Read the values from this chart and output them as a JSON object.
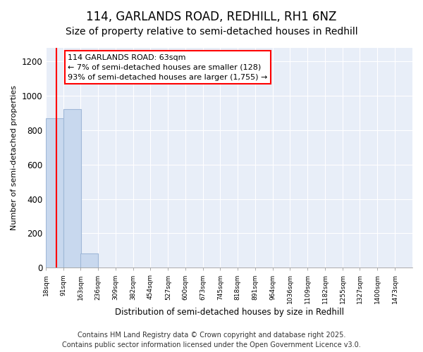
{
  "title": "114, GARLANDS ROAD, REDHILL, RH1 6NZ",
  "subtitle": "Size of property relative to semi-detached houses in Redhill",
  "xlabel": "Distribution of semi-detached houses by size in Redhill",
  "ylabel": "Number of semi-detached properties",
  "bin_edges": [
    18,
    91,
    163,
    236,
    309,
    382,
    454,
    527,
    600,
    673,
    745,
    818,
    891,
    964,
    1036,
    1109,
    1182,
    1255,
    1327,
    1400,
    1473
  ],
  "bar_heights": [
    870,
    920,
    85,
    0,
    0,
    0,
    0,
    0,
    0,
    0,
    0,
    0,
    0,
    0,
    0,
    0,
    0,
    0,
    0,
    0
  ],
  "bar_color": "#c8d8ee",
  "bar_edge_color": "#a0b8d8",
  "red_line_x": 63,
  "annotation_title": "114 GARLANDS ROAD: 63sqm",
  "annotation_line1": "← 7% of semi-detached houses are smaller (128)",
  "annotation_line2": "93% of semi-detached houses are larger (1,755) →",
  "ylim": [
    0,
    1280
  ],
  "yticks": [
    0,
    200,
    400,
    600,
    800,
    1000,
    1200
  ],
  "background_color": "#ffffff",
  "plot_bg_color": "#e8eef8",
  "grid_color": "#ffffff",
  "footer_line1": "Contains HM Land Registry data © Crown copyright and database right 2025.",
  "footer_line2": "Contains public sector information licensed under the Open Government Licence v3.0.",
  "title_fontsize": 12,
  "subtitle_fontsize": 10,
  "annotation_fontsize": 8,
  "footer_fontsize": 7
}
